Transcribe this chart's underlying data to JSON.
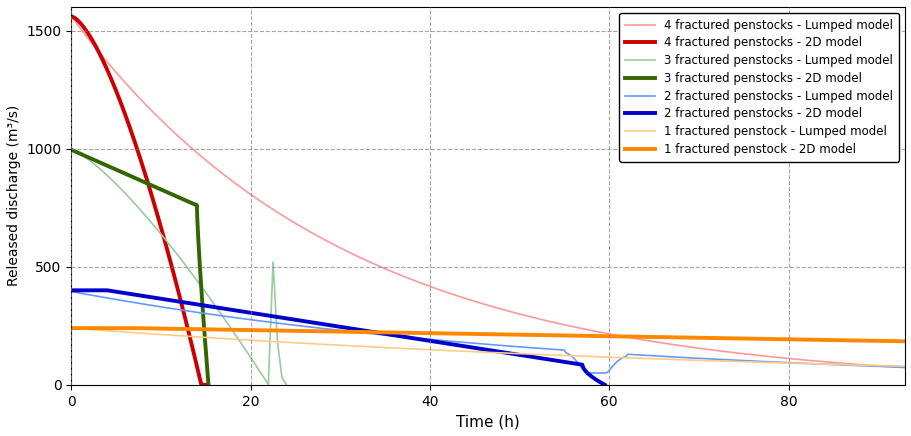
{
  "title": "",
  "xlabel": "Time (h)",
  "ylabel": "Released discharge (m³/s)",
  "xlim": [
    0,
    93
  ],
  "ylim": [
    0,
    1600
  ],
  "yticks": [
    0,
    500,
    1000,
    1500
  ],
  "xticks": [
    0,
    20,
    40,
    60,
    80
  ],
  "colors": {
    "4_lumped": "#FF9999",
    "4_2d": "#CC0000",
    "3_lumped": "#99CC99",
    "3_2d": "#336600",
    "2_lumped": "#6699FF",
    "2_2d": "#0000CC",
    "1_lumped": "#FFCC88",
    "1_2d": "#FF8800"
  },
  "legend_labels": [
    "4 fractured penstocks - Lumped model",
    "4 fractured penstocks - 2D model",
    "3 fractured penstocks - Lumped model",
    "3 fractured penstocks - 2D model",
    "2 fractured penstocks - Lumped model",
    "2 fractured penstocks - 2D model",
    "1 fractured penstock - Lumped model",
    "1 fractured penstock - 2D model"
  ],
  "thin_lw": 1.2,
  "thick_lw": 2.8
}
